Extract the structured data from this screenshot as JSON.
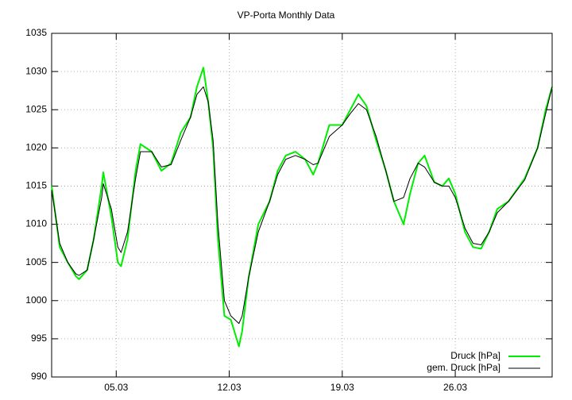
{
  "chart_data": {
    "type": "line",
    "title": "VP-Porta Monthly Data",
    "x": [
      1,
      1.5,
      2,
      2.5,
      2.7,
      3.2,
      3.6,
      4.1,
      4.2,
      4.7,
      5.1,
      5.3,
      5.7,
      6.2,
      6.5,
      7.2,
      7.8,
      8.4,
      9,
      9.6,
      10,
      10.4,
      10.7,
      11,
      11.3,
      11.7,
      12.1,
      12.6,
      12.8,
      13.2,
      13.8,
      14.5,
      15,
      15.5,
      16.1,
      16.7,
      17.2,
      17.5,
      18.2,
      19,
      19.5,
      20,
      20.5,
      21.1,
      21.7,
      22.2,
      22.8,
      23.2,
      23.7,
      24.1,
      24.7,
      25.2,
      25.6,
      26,
      26.6,
      27.1,
      27.6,
      28.1,
      28.6,
      29.3,
      30.3,
      31.1,
      31.6,
      32
    ],
    "series": [
      {
        "name": "Druck [hPa]",
        "color": "#00ee00",
        "values": [
          1015,
          1007,
          1005,
          1003.2,
          1002.8,
          1004,
          1008,
          1015,
          1016.8,
          1011,
          1005,
          1004.5,
          1008,
          1017,
          1020.5,
          1019.5,
          1017,
          1018,
          1022,
          1024,
          1028,
          1030.5,
          1026,
          1020,
          1008,
          998,
          997.5,
          994,
          996,
          1003,
          1010,
          1013,
          1017,
          1019,
          1019.5,
          1018.5,
          1016.5,
          1018,
          1023,
          1023,
          1025,
          1027,
          1025.5,
          1021,
          1017,
          1013,
          1010,
          1014,
          1018,
          1019,
          1015.5,
          1015,
          1016,
          1014,
          1009,
          1007,
          1006.8,
          1009,
          1012,
          1013,
          1016,
          1020,
          1025,
          1028
        ]
      },
      {
        "name": "gem. Druck [hPa]",
        "color": "#000000",
        "values": [
          1014.5,
          1007.5,
          1005,
          1003.5,
          1003.3,
          1004,
          1008,
          1013.5,
          1015.3,
          1012,
          1007,
          1006.3,
          1009,
          1016,
          1019.5,
          1019.5,
          1017.5,
          1017.8,
          1021,
          1024,
          1027,
          1028,
          1026,
          1021,
          1010,
          1000,
          998,
          997,
          998,
          1003,
          1009,
          1013,
          1016.5,
          1018.5,
          1019,
          1018.5,
          1017.8,
          1018,
          1021.5,
          1023,
          1024.5,
          1025.8,
          1025,
          1021.5,
          1017,
          1013,
          1013.5,
          1016,
          1018,
          1017.5,
          1015.5,
          1015,
          1015,
          1013.5,
          1009.5,
          1007.5,
          1007.3,
          1009,
          1011.5,
          1013,
          1015.8,
          1020,
          1024.5,
          1028
        ]
      }
    ],
    "xlim": [
      1,
      32
    ],
    "xticks": [
      {
        "value": 5,
        "label": "05.03"
      },
      {
        "value": 12,
        "label": "12.03"
      },
      {
        "value": 19,
        "label": "19.03"
      },
      {
        "value": 26,
        "label": "26.03"
      }
    ],
    "ylim": [
      990,
      1035
    ],
    "yticks": [
      990,
      995,
      1000,
      1005,
      1010,
      1015,
      1020,
      1025,
      1030,
      1035
    ],
    "grid": true,
    "legend": "bottom-right"
  }
}
